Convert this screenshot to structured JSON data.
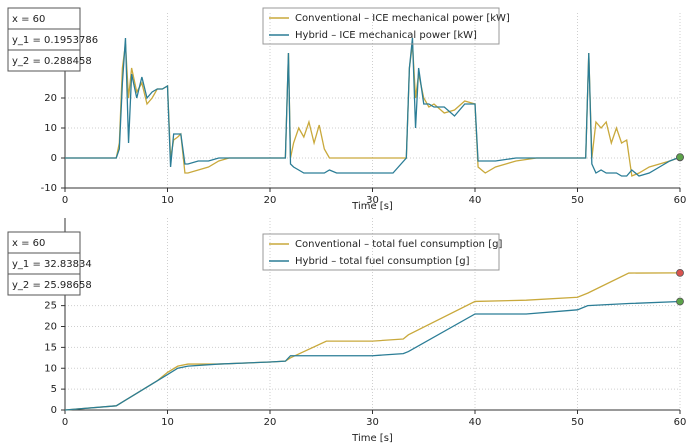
{
  "chart_data": [
    {
      "type": "line",
      "xlabel": "Time [s]",
      "annotations": [
        "x = 60",
        "y_1 = 0.1953786",
        "y_2 = 0.288458"
      ],
      "x": [
        0,
        5,
        5.3,
        5.6,
        5.9,
        6.2,
        6.5,
        7,
        7.5,
        8,
        8.5,
        9,
        9.5,
        10,
        10.3,
        10.6,
        11,
        11.3,
        11.7,
        12,
        13,
        14,
        15,
        16,
        18,
        20,
        21.5,
        21.8,
        22,
        22.3,
        22.8,
        23.3,
        23.8,
        24.3,
        24.8,
        25.3,
        25.8,
        26.5,
        28,
        30,
        32,
        33.3,
        33.6,
        33.9,
        34.2,
        34.5,
        35,
        35.5,
        36,
        37,
        38,
        39,
        40,
        40.3,
        41,
        42,
        44,
        46,
        48,
        50,
        50.8,
        51.1,
        51.4,
        51.8,
        52.3,
        52.8,
        53.3,
        53.8,
        54.3,
        54.8,
        55.3,
        56,
        57,
        58,
        59,
        60
      ],
      "series": [
        {
          "name": "Conventional – ICE mechanical power [kW]",
          "color": "#c9a93c",
          "values": [
            0,
            0,
            5,
            30,
            38,
            20,
            30,
            22,
            25,
            18,
            20,
            23,
            23,
            24,
            0,
            6,
            7,
            8,
            -5,
            -5,
            -4,
            -3,
            -1,
            0,
            0,
            0,
            0,
            35,
            0,
            5,
            10,
            7,
            12,
            5,
            11,
            3,
            0,
            0,
            0,
            0,
            0,
            0,
            30,
            38,
            20,
            28,
            20,
            17,
            18,
            15,
            16,
            19,
            18,
            -3,
            -5,
            -3,
            -1,
            0,
            0,
            0,
            0,
            35,
            0,
            12,
            10,
            12,
            5,
            10,
            5,
            6,
            -6,
            -5,
            -3,
            -2,
            -1,
            0.1953786
          ]
        },
        {
          "name": "Hybrid – ICE mechanical power [kW]",
          "color": "#2b7d96",
          "values": [
            0,
            0,
            3,
            25,
            40,
            5,
            28,
            20,
            27,
            20,
            22,
            23,
            23,
            24,
            -3,
            8,
            8,
            8,
            -2,
            -2,
            -1,
            -1,
            0,
            0,
            0,
            0,
            0,
            35,
            -2,
            -3,
            -4,
            -5,
            -5,
            -5,
            -5,
            -5,
            -4,
            -5,
            -5,
            -5,
            -5,
            0,
            30,
            40,
            10,
            30,
            18,
            18,
            17,
            17,
            14,
            18,
            18,
            -1,
            -1,
            -1,
            0,
            0,
            0,
            0,
            0,
            35,
            -2,
            -5,
            -4,
            -5,
            -5,
            -5,
            -6,
            -6,
            -4,
            -6,
            -5,
            -3,
            -1,
            0.288458
          ]
        }
      ],
      "xlim": [
        0,
        60
      ],
      "xticks": [
        0,
        10,
        20,
        30,
        40,
        50,
        60
      ],
      "ylim": [
        -10,
        40
      ],
      "yticks": [
        -10,
        0,
        10,
        20
      ],
      "grid": true
    },
    {
      "type": "line",
      "xlabel": "Time [s]",
      "annotations": [
        "x = 60",
        "y_1 = 32.83834",
        "y_2 = 25.98658"
      ],
      "x": [
        0,
        5,
        7,
        9,
        10,
        11,
        12,
        15,
        20,
        21.5,
        22,
        25.5,
        30,
        33,
        33.5,
        40,
        45,
        50,
        51,
        55,
        60
      ],
      "series": [
        {
          "name": "Conventional – total fuel consumption [g]",
          "color": "#c9a93c",
          "values": [
            0,
            1,
            4,
            7,
            9,
            10.5,
            11,
            11,
            11.5,
            11.7,
            12.5,
            16.5,
            16.5,
            17,
            18,
            26,
            26.3,
            27,
            28,
            32.8,
            32.83834
          ]
        },
        {
          "name": "Hybrid – total fuel consumption [g]",
          "color": "#2b7d96",
          "values": [
            0,
            1,
            4,
            7,
            8.5,
            10,
            10.5,
            11,
            11.5,
            11.7,
            13,
            13,
            13,
            13.5,
            14,
            23,
            23,
            24,
            25,
            25.5,
            25.98658
          ]
        }
      ],
      "xlim": [
        0,
        60
      ],
      "xticks": [
        0,
        10,
        20,
        30,
        40,
        50,
        60
      ],
      "ylim": [
        0,
        40
      ],
      "yticks": [
        0,
        5,
        10,
        15,
        20,
        25
      ],
      "grid": true
    }
  ]
}
